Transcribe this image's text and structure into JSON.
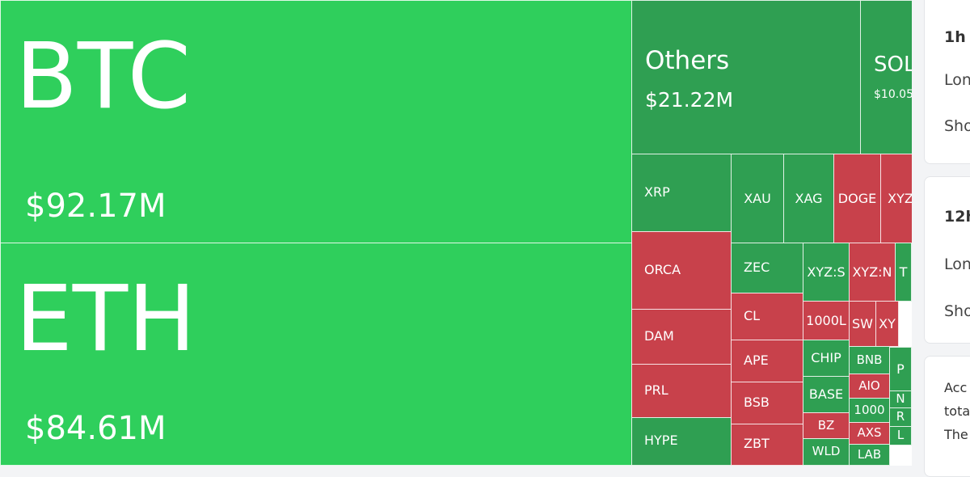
{
  "treemap": {
    "tiles": [
      {
        "label": "BTC",
        "value": "$92.17M",
        "color": "bright"
      },
      {
        "label": "ETH",
        "value": "$84.61M",
        "color": "bright"
      },
      {
        "label": "Others",
        "value": "$21.22M",
        "color": "green"
      },
      {
        "label": "SOL",
        "value": "$10.05",
        "color": "green"
      },
      {
        "label": "XRP",
        "color": "green"
      },
      {
        "label": "XAU",
        "color": "green"
      },
      {
        "label": "XAG",
        "color": "green"
      },
      {
        "label": "DOGE",
        "color": "red"
      },
      {
        "label": "XYZ",
        "color": "red"
      },
      {
        "label": "ORCA",
        "color": "red"
      },
      {
        "label": "DAM",
        "color": "red"
      },
      {
        "label": "PRL",
        "color": "red"
      },
      {
        "label": "HYPE",
        "color": "green"
      },
      {
        "label": "ZEC",
        "color": "green"
      },
      {
        "label": "CL",
        "color": "red"
      },
      {
        "label": "APE",
        "color": "red"
      },
      {
        "label": "BSB",
        "color": "red"
      },
      {
        "label": "ZBT",
        "color": "red"
      },
      {
        "label": "XYZ:S",
        "color": "green"
      },
      {
        "label": "XYZ:N",
        "color": "red"
      },
      {
        "label": "T",
        "color": "green"
      },
      {
        "label": "1000L",
        "color": "red"
      },
      {
        "label": "SW",
        "color": "red"
      },
      {
        "label": "XY",
        "color": "red"
      },
      {
        "label": "CHIP",
        "color": "green"
      },
      {
        "label": "BASE",
        "color": "green"
      },
      {
        "label": "BZ",
        "color": "red"
      },
      {
        "label": "WLD",
        "color": "green"
      },
      {
        "label": "BNB",
        "color": "green"
      },
      {
        "label": "AIO",
        "color": "red"
      },
      {
        "label": "1000",
        "color": "green"
      },
      {
        "label": "AXS",
        "color": "red"
      },
      {
        "label": "LAB",
        "color": "green"
      },
      {
        "label": "P",
        "color": "green"
      },
      {
        "label": "N",
        "color": "green"
      },
      {
        "label": "R",
        "color": "green"
      },
      {
        "label": "L",
        "color": "green"
      }
    ]
  },
  "panels": [
    {
      "title": "1h",
      "lines": [
        "Lon",
        "Sho"
      ]
    },
    {
      "title": "12h",
      "lines": [
        "Lon",
        "Sho"
      ]
    },
    {
      "lines": [
        "Acc",
        "tota",
        "The"
      ]
    }
  ]
}
